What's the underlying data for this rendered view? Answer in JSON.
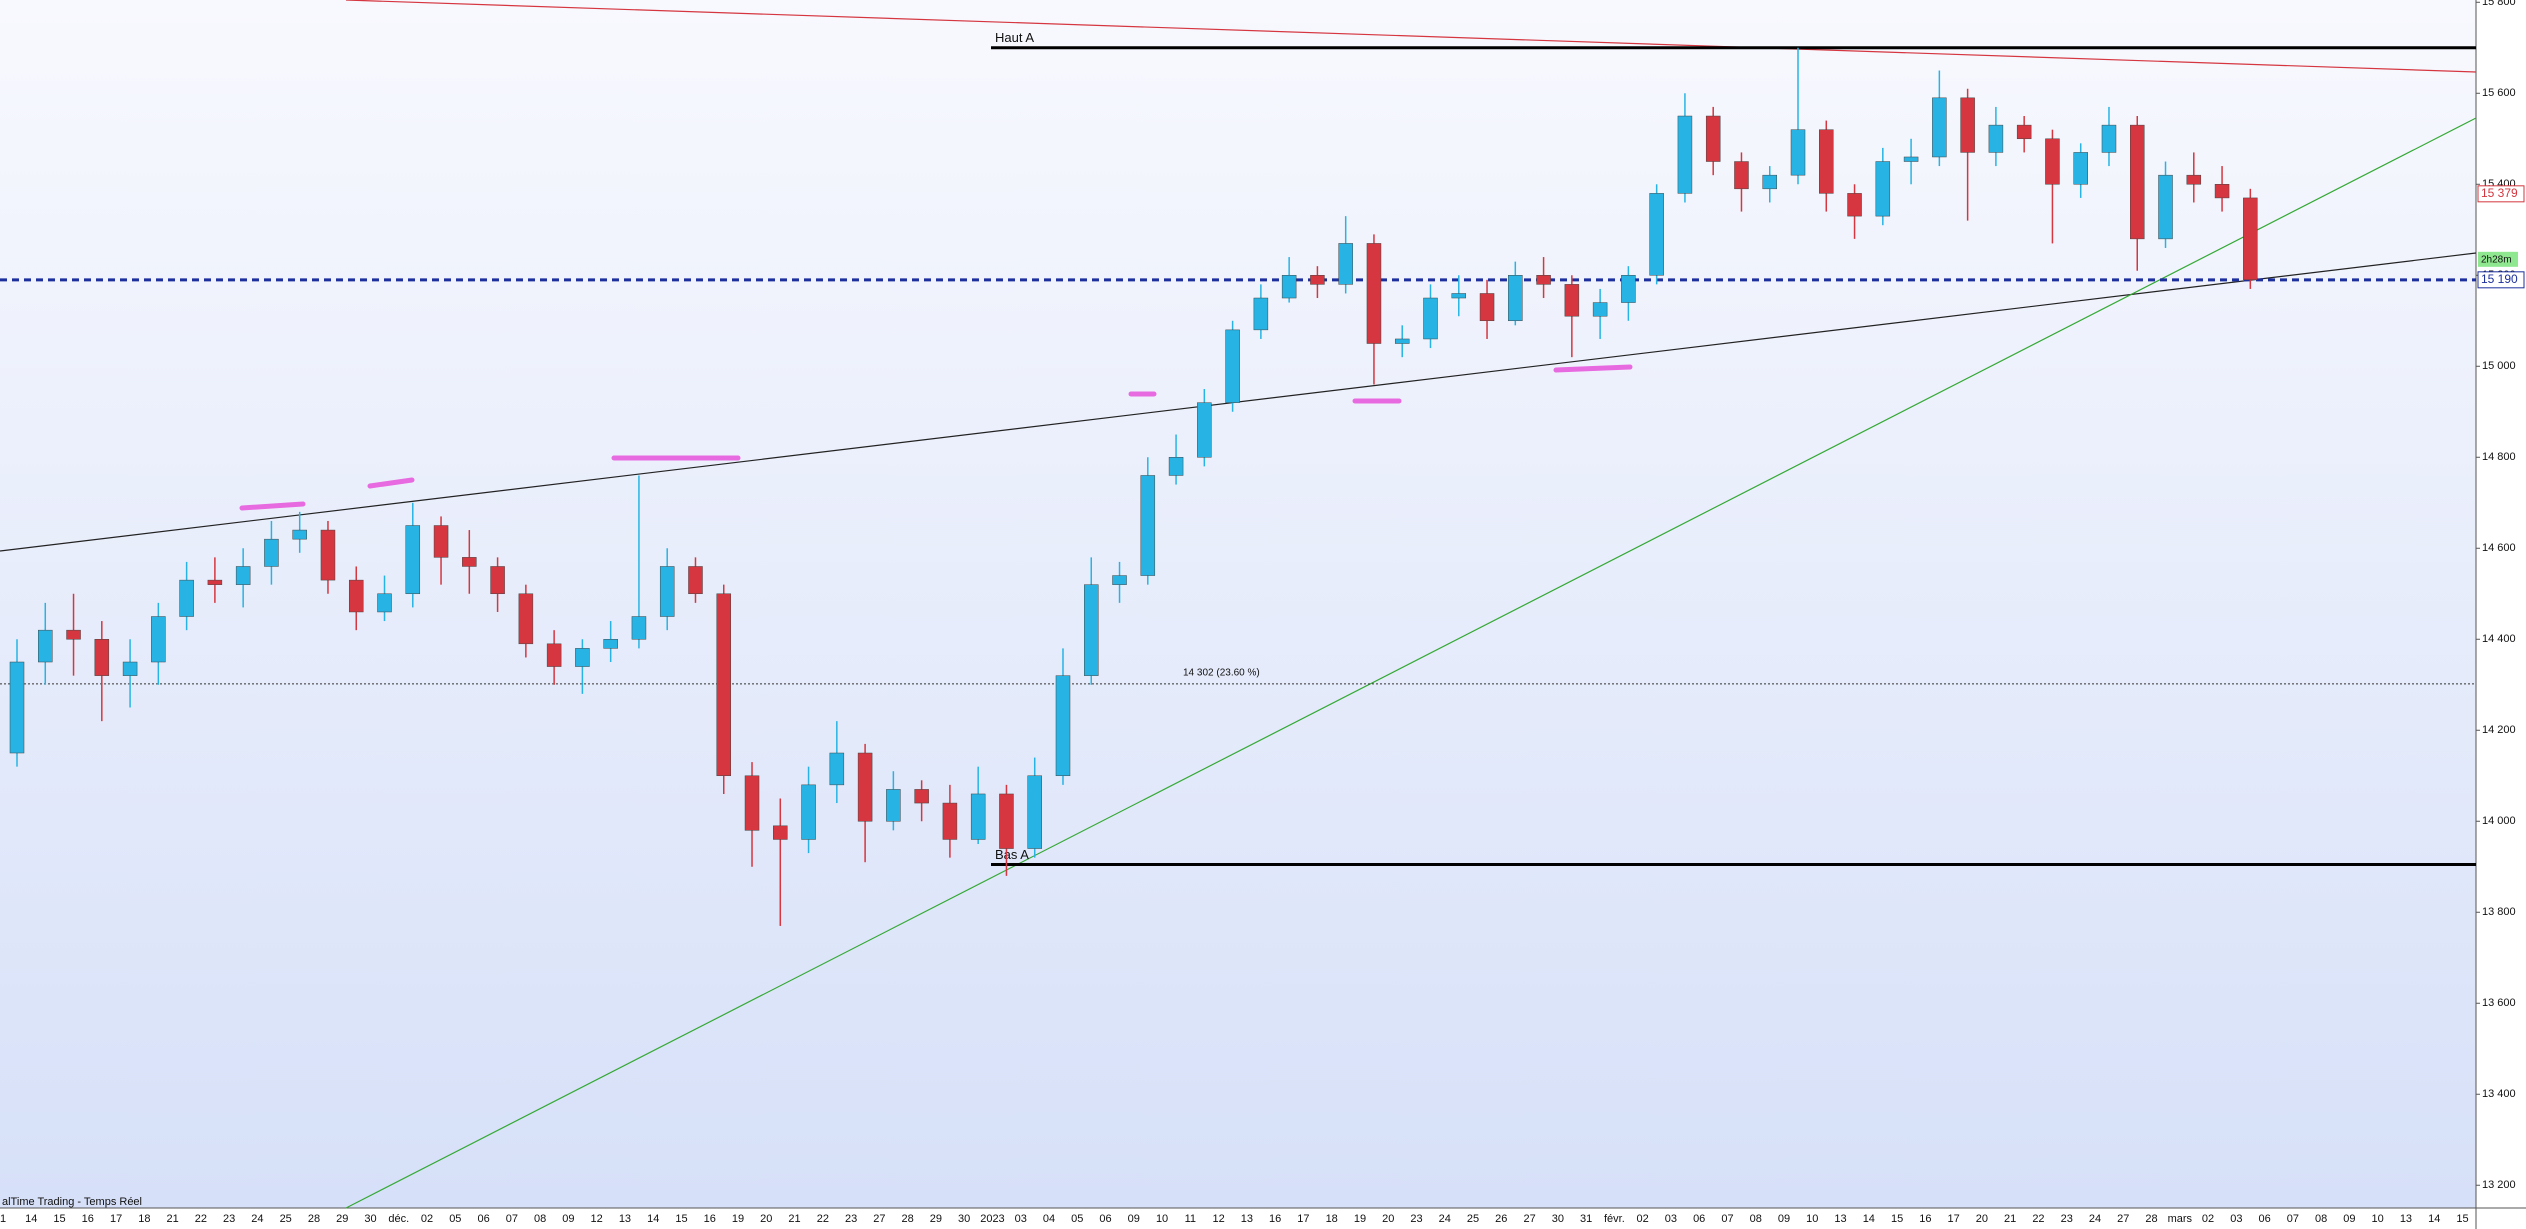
{
  "chart_data": {
    "type": "candlestick",
    "categories": [
      "1",
      "14",
      "15",
      "16",
      "17",
      "18",
      "21",
      "22",
      "23",
      "24",
      "25",
      "28",
      "29",
      "30",
      "déc.",
      "02",
      "05",
      "06",
      "07",
      "08",
      "09",
      "12",
      "13",
      "14",
      "15",
      "16",
      "19",
      "20",
      "21",
      "22",
      "23",
      "27",
      "28",
      "29",
      "30",
      "2023",
      "03",
      "04",
      "05",
      "06",
      "09",
      "10",
      "11",
      "12",
      "13",
      "16",
      "17",
      "18",
      "19",
      "20",
      "23",
      "24",
      "25",
      "26",
      "27",
      "30",
      "31",
      "févr.",
      "02",
      "03",
      "06",
      "07",
      "08",
      "09",
      "10",
      "13",
      "14",
      "15",
      "16",
      "17",
      "20",
      "21",
      "22",
      "23",
      "24",
      "27",
      "28",
      "mars",
      "02",
      "03",
      "06",
      "07",
      "08",
      "09",
      "10",
      "13",
      "14",
      "15"
    ],
    "open": [
      14150,
      14350,
      14420,
      14400,
      14320,
      14350,
      14450,
      14530,
      14520,
      14560,
      14620,
      14640,
      14530,
      14460,
      14500,
      14650,
      14580,
      14560,
      14500,
      14390,
      14340,
      14380,
      14400,
      14450,
      14560,
      14500,
      14100,
      13990,
      13960,
      14080,
      14150,
      14000,
      14070,
      14040,
      13960,
      14060,
      13940,
      14100,
      14320,
      14520,
      14540,
      14760,
      14800,
      14920,
      15080,
      15150,
      15200,
      15180,
      15270,
      15050,
      15060,
      15150,
      15160,
      15100,
      15200,
      15180,
      15110,
      15140,
      15200,
      15380,
      15550,
      15450,
      15390,
      15420,
      15520,
      15380,
      15330,
      15450,
      15460,
      15590,
      15470,
      15530,
      15500,
      15400,
      15470,
      15530,
      15280,
      15420,
      15400,
      15370,
      null,
      null,
      null,
      null,
      null,
      null,
      null,
      null
    ],
    "high": [
      14400,
      14480,
      14500,
      14440,
      14400,
      14480,
      14570,
      14580,
      14600,
      14660,
      14680,
      14660,
      14560,
      14540,
      14700,
      14670,
      14640,
      14580,
      14520,
      14420,
      14400,
      14440,
      14760,
      14600,
      14580,
      14520,
      14130,
      14050,
      14120,
      14220,
      14170,
      14110,
      14090,
      14080,
      14120,
      14080,
      14140,
      14380,
      14580,
      14570,
      14800,
      14850,
      14950,
      15100,
      15180,
      15240,
      15220,
      15330,
      15290,
      15090,
      15180,
      15200,
      15190,
      15230,
      15240,
      15200,
      15170,
      15220,
      15400,
      15600,
      15570,
      15470,
      15440,
      15700,
      15540,
      15400,
      15480,
      15500,
      15650,
      15610,
      15570,
      15550,
      15520,
      15490,
      15570,
      15550,
      15450,
      15470,
      15440,
      15390,
      null,
      null,
      null,
      null,
      null,
      null,
      null,
      null
    ],
    "low": [
      14120,
      14300,
      14320,
      14220,
      14250,
      14300,
      14420,
      14480,
      14470,
      14520,
      14590,
      14500,
      14420,
      14440,
      14470,
      14520,
      14500,
      14460,
      14360,
      14300,
      14280,
      14350,
      14380,
      14420,
      14480,
      14060,
      13900,
      13770,
      13930,
      14040,
      13910,
      13980,
      14000,
      13920,
      13950,
      13880,
      13920,
      14080,
      14300,
      14480,
      14520,
      14740,
      14780,
      14900,
      15060,
      15140,
      15150,
      15160,
      14960,
      15020,
      15040,
      15110,
      15060,
      15090,
      15150,
      15020,
      15060,
      15100,
      15180,
      15360,
      15420,
      15340,
      15360,
      15400,
      15340,
      15280,
      15310,
      15400,
      15440,
      15320,
      15440,
      15470,
      15270,
      15370,
      15440,
      15210,
      15260,
      15360,
      15340,
      15170,
      null,
      null,
      null,
      null,
      null,
      null,
      null,
      null
    ],
    "close": [
      14350,
      14420,
      14400,
      14320,
      14350,
      14450,
      14530,
      14520,
      14560,
      14620,
      14640,
      14530,
      14460,
      14500,
      14650,
      14580,
      14560,
      14500,
      14390,
      14340,
      14380,
      14400,
      14450,
      14560,
      14500,
      14100,
      13980,
      13960,
      14080,
      14150,
      14000,
      14070,
      14040,
      13960,
      14060,
      13940,
      14100,
      14320,
      14520,
      14540,
      14760,
      14800,
      14920,
      15080,
      15150,
      15200,
      15180,
      15270,
      15050,
      15060,
      15150,
      15160,
      15100,
      15200,
      15180,
      15110,
      15140,
      15200,
      15380,
      15550,
      15450,
      15390,
      15420,
      15520,
      15380,
      15330,
      15450,
      15460,
      15590,
      15470,
      15530,
      15500,
      15400,
      15470,
      15530,
      15280,
      15420,
      15400,
      15370,
      15190,
      null,
      null,
      null,
      null,
      null,
      null,
      null,
      null
    ],
    "up_color": "#27b4e4",
    "down_color": "#d5363f",
    "ylim": [
      13150,
      15805
    ],
    "yticks": [
      {
        "value": 13200,
        "label": "13 200"
      },
      {
        "value": 13400,
        "label": "13 400"
      },
      {
        "value": 13600,
        "label": "13 600"
      },
      {
        "value": 13800,
        "label": "13 800"
      },
      {
        "value": 14000,
        "label": "14 000"
      },
      {
        "value": 14200,
        "label": "14 200"
      },
      {
        "value": 14400,
        "label": "14 400"
      },
      {
        "value": 14600,
        "label": "14 600"
      },
      {
        "value": 14800,
        "label": "14 800"
      },
      {
        "value": 15000,
        "label": "15 000"
      },
      {
        "value": 15200,
        "label": "15 200"
      },
      {
        "value": 15400,
        "label": "15 400"
      },
      {
        "value": 15600,
        "label": "15 600"
      },
      {
        "value": 15800,
        "label": "15 800"
      }
    ],
    "levels": [
      {
        "label": "Haut A",
        "value": 15700
      },
      {
        "label": "Bas A",
        "value": 13905
      }
    ],
    "fib": {
      "value": 14302,
      "label": "14 302 (23.60 %)"
    },
    "last_price": {
      "value": 15190,
      "label": "15 190",
      "color": "#1c2f9c"
    },
    "ma_price": {
      "value": 15379,
      "label": "15 379",
      "color": "#d5363f"
    },
    "timer": "2h28m",
    "source": "alTime Trading - Temps Réel"
  }
}
